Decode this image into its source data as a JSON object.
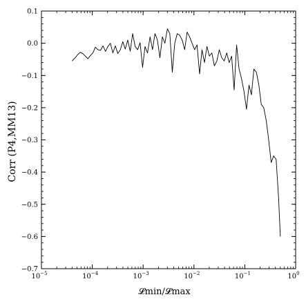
{
  "chart_data": {
    "type": "line",
    "title": "",
    "xlabel": "𝓛min/𝓛max",
    "ylabel": "Corr (P4,MM13)",
    "xscale": "log",
    "xlim": [
      1e-05,
      1
    ],
    "ylim": [
      -0.7,
      0.1
    ],
    "grid": false,
    "legend": "none",
    "line_color": "#000000",
    "x_ticks": [
      {
        "value": 1e-05,
        "base": "10",
        "exp": "−5"
      },
      {
        "value": 0.0001,
        "base": "10",
        "exp": "−4"
      },
      {
        "value": 0.001,
        "base": "10",
        "exp": "−3"
      },
      {
        "value": 0.01,
        "base": "10",
        "exp": "−2"
      },
      {
        "value": 0.1,
        "base": "10",
        "exp": "−1"
      },
      {
        "value": 1,
        "base": "10",
        "exp": "0"
      }
    ],
    "y_ticks": [
      {
        "value": 0.1,
        "label": "0.1"
      },
      {
        "value": 0.0,
        "label": "0.0"
      },
      {
        "value": -0.1,
        "label": "−0.1"
      },
      {
        "value": -0.2,
        "label": "−0.2"
      },
      {
        "value": -0.3,
        "label": "−0.3"
      },
      {
        "value": -0.4,
        "label": "−0.4"
      },
      {
        "value": -0.5,
        "label": "−0.5"
      },
      {
        "value": -0.6,
        "label": "−0.6"
      },
      {
        "value": -0.7,
        "label": "−0.7"
      }
    ],
    "series": [
      {
        "x": [
          4e-05,
          4.6e-05,
          5.2e-05,
          5.8e-05,
          6.5e-05,
          7.3e-05,
          8.2e-05,
          9.2e-05,
          0.000103,
          0.000115,
          0.000129,
          0.000145,
          0.000162,
          0.000182,
          0.000203,
          0.000227,
          0.000254,
          0.000284,
          0.000318,
          0.000356,
          0.000398,
          0.000445,
          0.000498,
          0.000557,
          0.000623,
          0.000697,
          0.00078,
          0.000872,
          0.000976,
          0.00109,
          0.00122,
          0.00137,
          0.00153,
          0.00171,
          0.00191,
          0.00214,
          0.00239,
          0.00268,
          0.003,
          0.00335,
          0.00375,
          0.00419,
          0.00469,
          0.00524,
          0.00587,
          0.00656,
          0.00734,
          0.00821,
          0.00918,
          0.0103,
          0.0115,
          0.0129,
          0.0144,
          0.0161,
          0.018,
          0.0201,
          0.0225,
          0.0252,
          0.0282,
          0.0315,
          0.0352,
          0.0394,
          0.0441,
          0.0493,
          0.0551,
          0.0617,
          0.069,
          0.0772,
          0.0863,
          0.0965,
          0.108,
          0.121,
          0.135,
          0.151,
          0.169,
          0.189,
          0.211,
          0.236,
          0.264,
          0.295,
          0.33,
          0.369,
          0.413,
          0.462,
          0.5
        ],
        "y": [
          -0.055,
          -0.045,
          -0.035,
          -0.028,
          -0.032,
          -0.04,
          -0.048,
          -0.038,
          -0.03,
          -0.012,
          -0.02,
          -0.022,
          -0.008,
          -0.025,
          -0.01,
          0.0,
          -0.03,
          -0.008,
          -0.032,
          -0.02,
          0.005,
          -0.018,
          0.01,
          -0.025,
          0.03,
          -0.01,
          -0.02,
          0.002,
          -0.075,
          -0.01,
          -0.03,
          0.02,
          -0.02,
          0.03,
          0.01,
          -0.045,
          0.02,
          0.0,
          0.045,
          0.03,
          -0.09,
          0.0,
          0.03,
          0.025,
          0.01,
          -0.02,
          0.035,
          0.02,
          0.0,
          -0.02,
          -0.005,
          -0.095,
          -0.02,
          -0.06,
          -0.01,
          -0.04,
          -0.03,
          -0.07,
          -0.055,
          -0.02,
          -0.045,
          -0.055,
          -0.03,
          -0.06,
          -0.04,
          -0.145,
          -0.005,
          -0.08,
          -0.11,
          -0.15,
          -0.205,
          -0.13,
          -0.16,
          -0.08,
          -0.09,
          -0.13,
          -0.19,
          -0.2,
          -0.24,
          -0.3,
          -0.37,
          -0.35,
          -0.36,
          -0.48,
          -0.6
        ]
      }
    ]
  }
}
